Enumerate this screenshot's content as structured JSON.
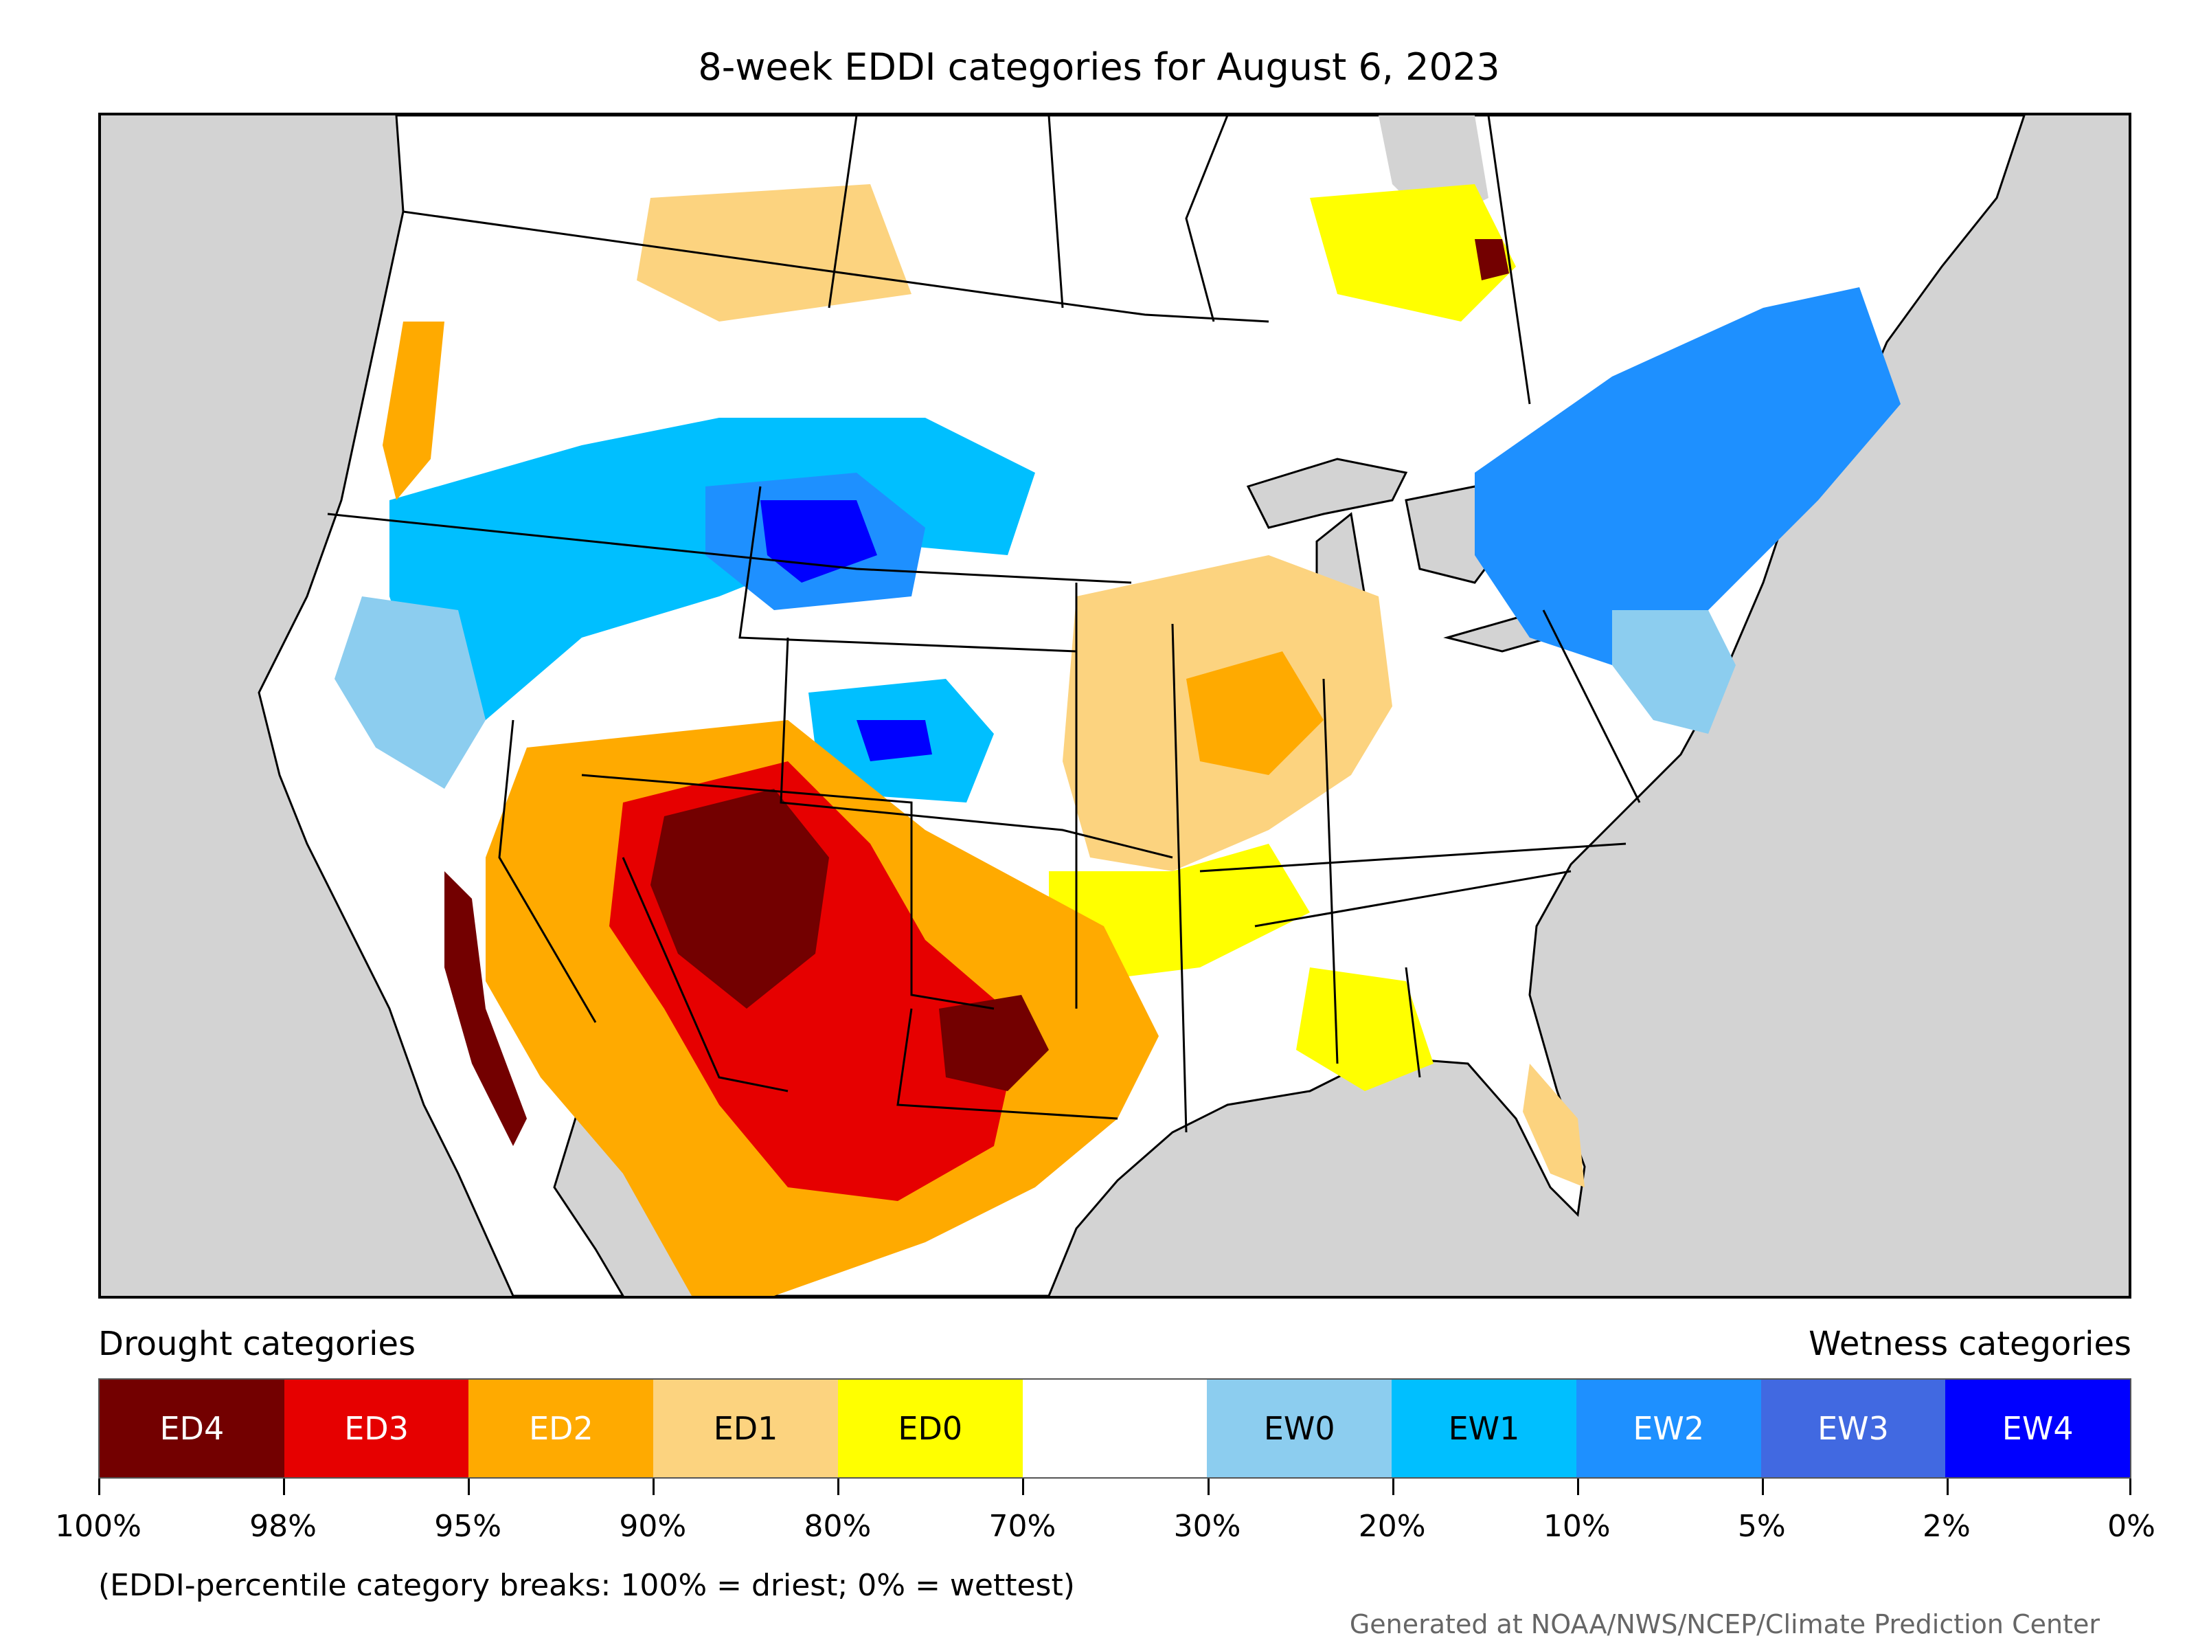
{
  "title": "8-week EDDI categories for August 6, 2023",
  "legend": {
    "drought_heading": "Drought categories",
    "wetness_heading": "Wetness categories",
    "categories": [
      {
        "label": "ED4",
        "color": "#730000",
        "text_color": "#ffffff"
      },
      {
        "label": "ED3",
        "color": "#e60000",
        "text_color": "#ffffff"
      },
      {
        "label": "ED2",
        "color": "#ffaa00",
        "text_color": "#ffffff"
      },
      {
        "label": "ED1",
        "color": "#fcd37f",
        "text_color": "#000000"
      },
      {
        "label": "ED0",
        "color": "#ffff00",
        "text_color": "#000000"
      },
      {
        "label": "",
        "color": "#ffffff",
        "text_color": "#000000"
      },
      {
        "label": "EW0",
        "color": "#8ccdef",
        "text_color": "#000000"
      },
      {
        "label": "EW1",
        "color": "#00bfff",
        "text_color": "#000000"
      },
      {
        "label": "EW2",
        "color": "#1e90ff",
        "text_color": "#ffffff"
      },
      {
        "label": "EW3",
        "color": "#4169e1",
        "text_color": "#ffffff"
      },
      {
        "label": "EW4",
        "color": "#0000ff",
        "text_color": "#ffffff"
      }
    ],
    "tick_labels": [
      "100%",
      "98%",
      "95%",
      "90%",
      "80%",
      "70%",
      "30%",
      "20%",
      "10%",
      "5%",
      "2%",
      "0%"
    ]
  },
  "footnote": "(EDDI-percentile category breaks: 100% = driest; 0% = wettest)",
  "credit": "Generated at NOAA/NWS/NCEP/Climate Prediction Center",
  "map": {
    "background_color": "#d3d3d3",
    "land_color": "#ffffff"
  }
}
